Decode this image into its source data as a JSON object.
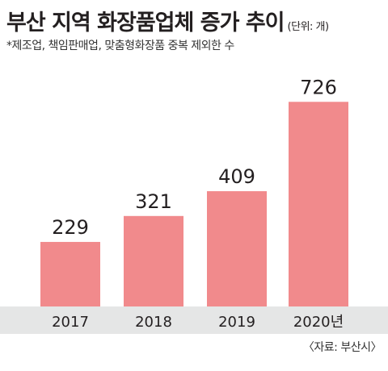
{
  "title": "부산 지역 화장품업체 증가 추이",
  "unit": "(단위: 개)",
  "note": "*제조업, 책임판매업, 맞춤형화장품 중복 제외한 수",
  "source": "〈자료: 부산시〉",
  "colors": {
    "bar": "#f18a8c",
    "axis_band": "#e5e6e6",
    "text": "#231f20"
  },
  "chart_data": {
    "type": "bar",
    "title": "부산 지역 화장품업체 증가 추이",
    "categories": [
      "2017",
      "2018",
      "2019",
      "2020년"
    ],
    "values": [
      229,
      321,
      409,
      726
    ],
    "xlabel": "",
    "ylabel": "",
    "unit": "개",
    "grid": false,
    "legend": "none"
  }
}
